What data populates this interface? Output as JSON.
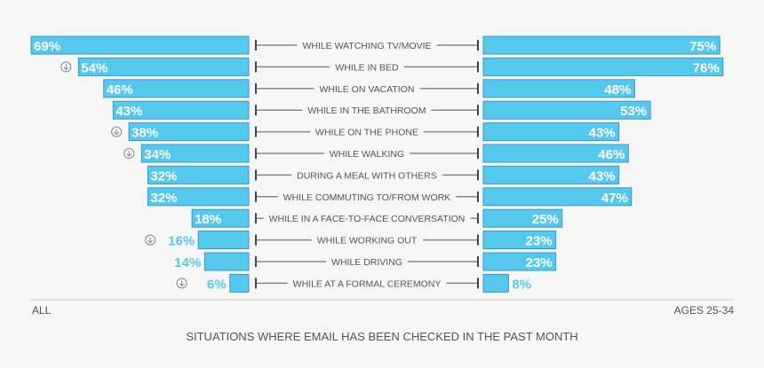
{
  "chart_data": {
    "type": "bar",
    "layout": "butterfly",
    "title": "SITUATIONS WHERE EMAIL HAS BEEN CHECKED IN THE PAST MONTH",
    "left_label": "ALL",
    "right_label": "AGES 25-34",
    "categories": [
      "WHILE WATCHING TV/MOVIE",
      "WHILE IN BED",
      "WHILE ON VACATION",
      "WHILE IN THE BATHROOM",
      "WHILE ON THE PHONE",
      "WHILE WALKING",
      "DURING A MEAL WITH OTHERS",
      "WHILE COMMUTING TO/FROM WORK",
      "WHILE IN A FACE-TO-FACE CONVERSATION",
      "WHILE WORKING OUT",
      "WHILE DRIVING",
      "WHILE AT A FORMAL CEREMONY"
    ],
    "series": [
      {
        "name": "ALL",
        "values": [
          69,
          54,
          46,
          43,
          38,
          34,
          32,
          32,
          18,
          16,
          14,
          6
        ],
        "labels": [
          "69%",
          "54%",
          "46%",
          "43%",
          "38%",
          "34%",
          "32%",
          "32%",
          "18%",
          "16%",
          "14%",
          "6%"
        ],
        "down_indicator": [
          false,
          true,
          false,
          false,
          true,
          true,
          false,
          false,
          false,
          true,
          false,
          true
        ]
      },
      {
        "name": "AGES 25-34",
        "values": [
          75,
          76,
          48,
          53,
          43,
          46,
          43,
          47,
          25,
          23,
          23,
          8
        ],
        "labels": [
          "75%",
          "76%",
          "48%",
          "53%",
          "43%",
          "46%",
          "43%",
          "47%",
          "25%",
          "23%",
          "23%",
          "8%"
        ]
      }
    ],
    "xlim": [
      0,
      76
    ],
    "bar_color": "#55c8ee",
    "bar_border_color": "#3a97c7",
    "text_color": "#555555",
    "divider_color": "#888888",
    "indicator_icon": "down-arrow-circle-icon"
  }
}
